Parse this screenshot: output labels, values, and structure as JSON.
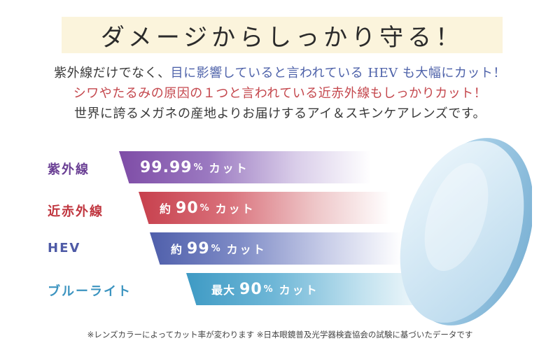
{
  "title": "ダメージからしっかり守る！",
  "intro": {
    "line1_a": "紫外線だけでなく、",
    "line1_b": "目に影響していると言われている HEV も大幅にカット！",
    "line2": "シワやたるみの原因の１つと言われている近赤外線もしっかりカット！",
    "line3": "世界に誇るメガネの産地よりお届けするアイ＆スキンケアレンズです。"
  },
  "rows": [
    {
      "label": "紫外線",
      "prefix": "",
      "value": "99.99",
      "unit": "%",
      "suffix": "カット",
      "color": "#7e4ca6",
      "label_color": "#6a3f94"
    },
    {
      "label": "近赤外線",
      "prefix": "約",
      "value": "90",
      "unit": "%",
      "suffix": "カット",
      "color": "#c7404d",
      "label_color": "#c0363f"
    },
    {
      "label": "HEV",
      "prefix": "約",
      "value": "99",
      "unit": "%",
      "suffix": "カット",
      "color": "#4f5fab",
      "label_color": "#4e5aa6"
    },
    {
      "label": "ブルーライト",
      "prefix": "最大",
      "value": "90",
      "unit": "%",
      "suffix": "カット",
      "color": "#3e9ac4",
      "label_color": "#3c94c0"
    }
  ],
  "footnote": "※レンズカラーによってカット率が変わります ※日本眼鏡普及光学器検査協会の試験に基づいたデータです",
  "colors": {
    "title_band": "#fbf4dc",
    "text_blue": "#4f63aa",
    "text_red": "#c4474d",
    "lens_edge": "#8fc2de"
  }
}
